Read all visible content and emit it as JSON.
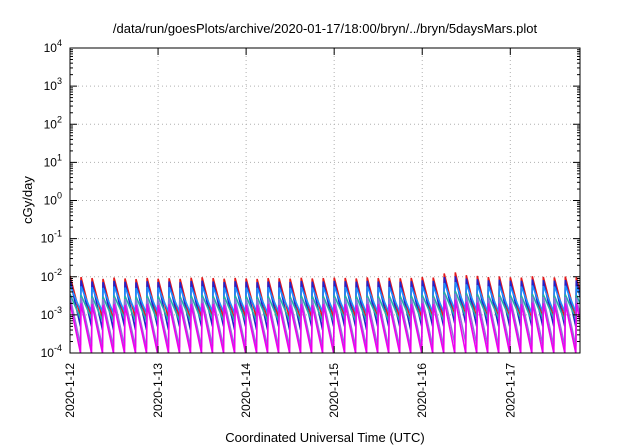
{
  "chart_data": {
    "type": "line",
    "title": "/data/run/goesPlots/archive/2020-01-17/18:00/bryn/../bryn/5daysMars.plot",
    "xlabel": "Coordinated Universal Time (UTC)",
    "ylabel": "cGy/day",
    "yscale": "log",
    "ylim": [
      0.0001,
      10000
    ],
    "y_ticks": [
      {
        "value": 0.0001,
        "base": "10",
        "exp": "-4"
      },
      {
        "value": 0.001,
        "base": "10",
        "exp": "-3"
      },
      {
        "value": 0.01,
        "base": "10",
        "exp": "-2"
      },
      {
        "value": 0.1,
        "base": "10",
        "exp": "-1"
      },
      {
        "value": 1,
        "base": "10",
        "exp": "0"
      },
      {
        "value": 10,
        "base": "10",
        "exp": "1"
      },
      {
        "value": 100,
        "base": "10",
        "exp": "2"
      },
      {
        "value": 1000,
        "base": "10",
        "exp": "3"
      },
      {
        "value": 10000,
        "base": "10",
        "exp": "4"
      }
    ],
    "xlim": [
      "2020-01-12",
      "2020-01-17T19:00"
    ],
    "x_ticks": [
      "2020-1-12",
      "2020-1-13",
      "2020-1-14",
      "2020-1-15",
      "2020-1-16",
      "2020-1-17"
    ],
    "grid": true,
    "sawtooth_period_hours": 3,
    "series": [
      {
        "color": "#e41a1c",
        "peaks": [
          0.0105,
          0.0098,
          0.0092,
          0.0088,
          0.0095,
          0.009,
          0.0087,
          0.0093,
          0.0089,
          0.0091,
          0.0088,
          0.0094,
          0.0097,
          0.0092,
          0.0089,
          0.0093,
          0.009,
          0.0088,
          0.0092,
          0.0091,
          0.0089,
          0.0094,
          0.009,
          0.0092,
          0.0095,
          0.0093,
          0.009,
          0.0096,
          0.0092,
          0.0094,
          0.0091,
          0.0093,
          0.0098,
          0.0095,
          0.0122,
          0.013,
          0.011,
          0.0105,
          0.0098,
          0.0102,
          0.0097,
          0.0095,
          0.0103,
          0.0099,
          0.0096,
          0.0101,
          0.0098,
          0.0125
        ],
        "troughs": [
          0.0009,
          0.0008,
          0.0008,
          0.0007,
          0.0008,
          0.0008,
          0.0007,
          0.0008,
          0.0008,
          0.0008,
          0.0007,
          0.0008,
          0.0008,
          0.0008,
          0.0007,
          0.0008,
          0.0008,
          0.0007,
          0.0008,
          0.0008,
          0.0007,
          0.0008,
          0.0008,
          0.0008,
          0.0008,
          0.0008,
          0.0007,
          0.0008,
          0.0008,
          0.0008,
          0.0007,
          0.0008,
          0.0008,
          0.0008,
          0.0009,
          0.0009,
          0.0008,
          0.0008,
          0.0008,
          0.0008,
          0.0008,
          0.0007,
          0.0008,
          0.0008,
          0.0008,
          0.0008,
          0.0008,
          0.0009
        ]
      },
      {
        "color": "#2222cc",
        "peaks": [
          0.0085,
          0.008,
          0.0075,
          0.0072,
          0.0078,
          0.0074,
          0.0071,
          0.0076,
          0.0073,
          0.0075,
          0.0072,
          0.0077,
          0.0079,
          0.0075,
          0.0073,
          0.0076,
          0.0074,
          0.0072,
          0.0075,
          0.0074,
          0.0073,
          0.0077,
          0.0074,
          0.0075,
          0.0078,
          0.0076,
          0.0074,
          0.0078,
          0.0075,
          0.0077,
          0.0074,
          0.0076,
          0.008,
          0.0078,
          0.0098,
          0.0102,
          0.009,
          0.0086,
          0.008,
          0.0083,
          0.0079,
          0.0078,
          0.0084,
          0.0081,
          0.0079,
          0.0082,
          0.008,
          0.01
        ],
        "troughs": [
          0.0005,
          0.0005,
          0.0004,
          0.0004,
          0.0005,
          0.0004,
          0.0004,
          0.0005,
          0.0004,
          0.0005,
          0.0004,
          0.0005,
          0.0005,
          0.0005,
          0.0004,
          0.0005,
          0.0004,
          0.0004,
          0.0005,
          0.0004,
          0.0004,
          0.0005,
          0.0004,
          0.0005,
          0.0005,
          0.0005,
          0.0004,
          0.0005,
          0.0005,
          0.0005,
          0.0004,
          0.0005,
          0.0005,
          0.0005,
          0.0006,
          0.0006,
          0.0005,
          0.0005,
          0.0005,
          0.0005,
          0.0005,
          0.0005,
          0.0005,
          0.0005,
          0.0005,
          0.0005,
          0.0005,
          0.0006
        ]
      },
      {
        "color": "#1e90ff",
        "peaks": [
          0.006,
          0.0056,
          0.0053,
          0.0051,
          0.0055,
          0.0052,
          0.005,
          0.0054,
          0.0052,
          0.0053,
          0.0051,
          0.0054,
          0.0056,
          0.0053,
          0.0052,
          0.0054,
          0.0052,
          0.0051,
          0.0053,
          0.0052,
          0.0051,
          0.0054,
          0.0052,
          0.0053,
          0.0055,
          0.0054,
          0.0052,
          0.0055,
          0.0053,
          0.0054,
          0.0052,
          0.0054,
          0.0056,
          0.0055,
          0.0068,
          0.0072,
          0.0063,
          0.006,
          0.0056,
          0.0058,
          0.0056,
          0.0055,
          0.0059,
          0.0057,
          0.0055,
          0.0058,
          0.0056,
          0.007
        ],
        "troughs": [
          0.0013,
          0.0012,
          0.0012,
          0.0011,
          0.0012,
          0.0012,
          0.0011,
          0.0012,
          0.0012,
          0.0012,
          0.0011,
          0.0012,
          0.0012,
          0.0012,
          0.0011,
          0.0012,
          0.0012,
          0.0011,
          0.0012,
          0.0012,
          0.0011,
          0.0012,
          0.0012,
          0.0012,
          0.0012,
          0.0012,
          0.0011,
          0.0012,
          0.0012,
          0.0012,
          0.0011,
          0.0012,
          0.0012,
          0.0012,
          0.0014,
          0.0014,
          0.0013,
          0.0012,
          0.0012,
          0.0012,
          0.0012,
          0.0011,
          0.0012,
          0.0012,
          0.0012,
          0.0012,
          0.0012,
          0.0014
        ]
      },
      {
        "color": "#20b2aa",
        "peaks": [
          0.0035,
          0.0033,
          0.0031,
          0.003,
          0.0032,
          0.0031,
          0.003,
          0.0032,
          0.0031,
          0.0031,
          0.003,
          0.0032,
          0.0033,
          0.0031,
          0.0031,
          0.0032,
          0.0031,
          0.003,
          0.0031,
          0.0031,
          0.003,
          0.0032,
          0.0031,
          0.0031,
          0.0032,
          0.0032,
          0.0031,
          0.0032,
          0.0031,
          0.0032,
          0.0031,
          0.0032,
          0.0033,
          0.0032,
          0.004,
          0.0042,
          0.0037,
          0.0035,
          0.0033,
          0.0034,
          0.0033,
          0.0032,
          0.0035,
          0.0034,
          0.0032,
          0.0034,
          0.0033,
          0.0041
        ],
        "troughs": [
          0.0008,
          0.0008,
          0.0007,
          0.0007,
          0.0008,
          0.0007,
          0.0007,
          0.0007,
          0.0007,
          0.0007,
          0.0007,
          0.0007,
          0.0008,
          0.0007,
          0.0007,
          0.0007,
          0.0007,
          0.0007,
          0.0007,
          0.0007,
          0.0007,
          0.0007,
          0.0007,
          0.0007,
          0.0008,
          0.0007,
          0.0007,
          0.0008,
          0.0007,
          0.0007,
          0.0007,
          0.0007,
          0.0008,
          0.0007,
          0.0009,
          0.0009,
          0.0008,
          0.0008,
          0.0008,
          0.0008,
          0.0008,
          0.0007,
          0.0008,
          0.0008,
          0.0007,
          0.0008,
          0.0008,
          0.0009
        ]
      },
      {
        "color": "#9370db",
        "peaks": [
          0.003,
          0.0028,
          0.0027,
          0.0026,
          0.0028,
          0.0026,
          0.0025,
          0.0027,
          0.0026,
          0.0027,
          0.0026,
          0.0027,
          0.0028,
          0.0027,
          0.0026,
          0.0027,
          0.0026,
          0.0026,
          0.0027,
          0.0026,
          0.0026,
          0.0027,
          0.0026,
          0.0027,
          0.0028,
          0.0027,
          0.0026,
          0.0028,
          0.0027,
          0.0027,
          0.0026,
          0.0027,
          0.0028,
          0.0028,
          0.0034,
          0.0036,
          0.0032,
          0.003,
          0.0028,
          0.0029,
          0.0028,
          0.0028,
          0.003,
          0.0029,
          0.0028,
          0.0029,
          0.0028,
          0.0035
        ],
        "troughs": [
          0.00016,
          0.00015,
          0.00014,
          0.00014,
          0.00015,
          0.00014,
          0.00013,
          0.00014,
          0.00014,
          0.00014,
          0.00014,
          0.00014,
          0.00015,
          0.00014,
          0.00014,
          0.00014,
          0.00014,
          0.00014,
          0.00014,
          0.00014,
          0.00014,
          0.00014,
          0.00014,
          0.00014,
          0.00015,
          0.00014,
          0.00014,
          0.00015,
          0.00014,
          0.00014,
          0.00014,
          0.00014,
          0.00015,
          0.00015,
          0.00018,
          0.00019,
          0.00017,
          0.00016,
          0.00015,
          0.00015,
          0.00015,
          0.00015,
          0.00016,
          0.00015,
          0.00015,
          0.00015,
          0.00015,
          0.00018
        ]
      },
      {
        "color": "#ee00ee",
        "peaks": [
          0.0021,
          0.002,
          0.0019,
          0.0018,
          0.0019,
          0.0018,
          0.0018,
          0.0019,
          0.0018,
          0.0019,
          0.0018,
          0.0019,
          0.002,
          0.0019,
          0.0018,
          0.0019,
          0.0018,
          0.0018,
          0.0019,
          0.0018,
          0.0018,
          0.0019,
          0.0018,
          0.0019,
          0.0019,
          0.0019,
          0.0018,
          0.0019,
          0.0019,
          0.0019,
          0.0018,
          0.0019,
          0.002,
          0.0019,
          0.0024,
          0.0025,
          0.0022,
          0.0021,
          0.002,
          0.002,
          0.002,
          0.0019,
          0.0021,
          0.002,
          0.0019,
          0.002,
          0.002,
          0.0024
        ],
        "troughs": [
          8e-05,
          8e-05,
          8e-05,
          8e-05,
          8e-05,
          8e-05,
          8e-05,
          8e-05,
          8e-05,
          8e-05,
          8e-05,
          8e-05,
          8e-05,
          8e-05,
          8e-05,
          8e-05,
          8e-05,
          8e-05,
          8e-05,
          8e-05,
          8e-05,
          8e-05,
          8e-05,
          8e-05,
          8e-05,
          8e-05,
          8e-05,
          8e-05,
          8e-05,
          8e-05,
          8e-05,
          8e-05,
          8e-05,
          8e-05,
          8e-05,
          8e-05,
          8e-05,
          8e-05,
          8e-05,
          8e-05,
          8e-05,
          8e-05,
          8e-05,
          8e-05,
          8e-05,
          8e-05,
          8e-05,
          8e-05
        ]
      }
    ]
  }
}
